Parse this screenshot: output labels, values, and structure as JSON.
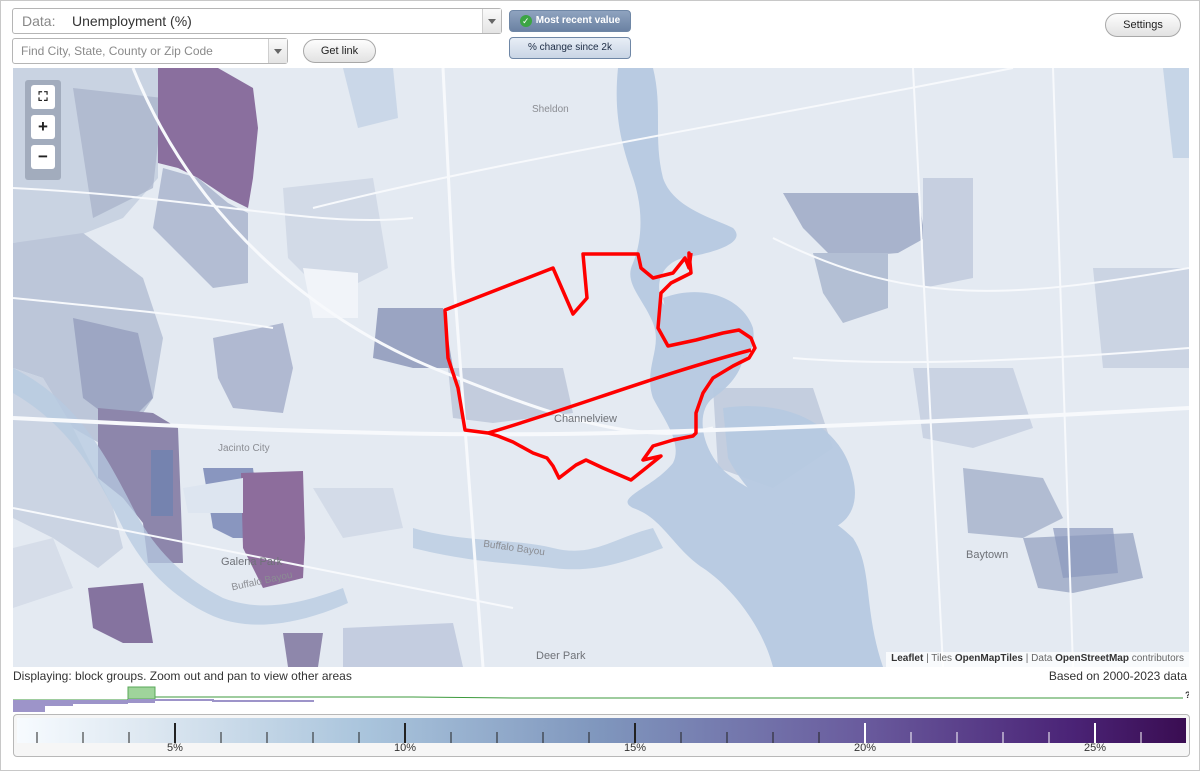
{
  "toolbar": {
    "data_label": "Data:",
    "data_value": "Unemployment (%)",
    "search_placeholder": "Find City, State, County or Zip Code",
    "get_link_label": "Get link",
    "settings_label": "Settings",
    "most_recent_label": "Most recent value",
    "change_label": "% change since 2k"
  },
  "map": {
    "places": [
      "Sheldon",
      "Channelview",
      "Jacinto City",
      "Galena Park",
      "Baytown",
      "Deer Park",
      "Buffalo Bayou",
      "Buffalo Bayou"
    ],
    "attribution": {
      "leaflet": "Leaflet",
      "sep1": " | Tiles ",
      "tiles": "OpenMapTiles",
      "sep2": " | Data ",
      "data": "OpenStreetMap",
      "contributors": " contributors"
    },
    "zoom_icons": [
      "fit-extent-icon",
      "zoom-in-icon",
      "zoom-out-icon"
    ],
    "highlight_color": "#ff0000"
  },
  "footer": {
    "displaying": "Displaying: block groups. Zoom out and pan to view other areas",
    "based_on": "Based on 2000-2023 data",
    "histogram_help": "?"
  },
  "legend": {
    "labels": [
      "5%",
      "10%",
      "15%",
      "20%",
      "25%"
    ],
    "min_percent": 0,
    "max_percent": 27,
    "colors": [
      "#f7fbff",
      "#a9c4dc",
      "#7f96bd",
      "#6a5c9e",
      "#3a0d52"
    ]
  }
}
